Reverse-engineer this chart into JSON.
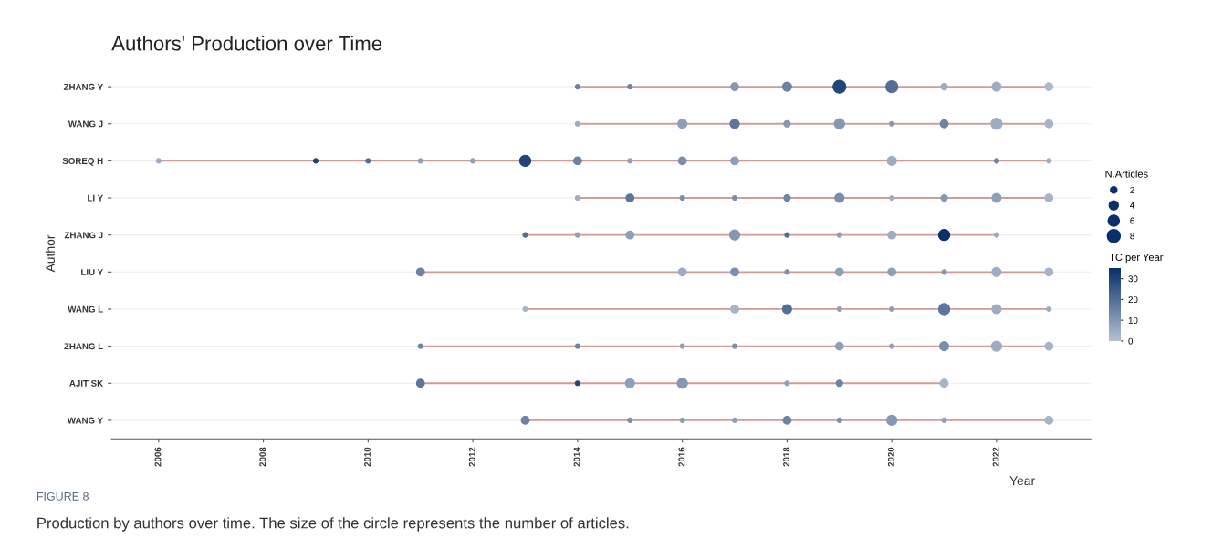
{
  "chart_data": {
    "type": "bubble",
    "orientation": "horizontal",
    "title": "Authors' Production over Time",
    "xlabel": "Year",
    "ylabel": "Author",
    "categories": [
      "ZHANG Y",
      "WANG J",
      "SOREQ H",
      "LI Y",
      "ZHANG J",
      "LIU Y",
      "WANG L",
      "ZHANG L",
      "AJIT SK",
      "WANG Y"
    ],
    "xlim": [
      2005.1,
      2023.8
    ],
    "xticks": [
      2006,
      2008,
      2010,
      2012,
      2014,
      2016,
      2018,
      2020,
      2022
    ],
    "grid": "y",
    "legend_title": "N.Articles",
    "size_legend": [
      2,
      4,
      6,
      8
    ],
    "clabel": "TC per Year",
    "cticks": [
      0,
      10,
      20,
      30
    ],
    "clim": [
      0,
      35
    ],
    "series": [
      {
        "type": "bar",
        "color": "#d39a9a",
        "base": [
          2014,
          2014,
          2006,
          2014,
          2013,
          2011,
          2013,
          2011,
          2011,
          2013
        ],
        "values": [
          9,
          9,
          17,
          9,
          9,
          12,
          10,
          12,
          10,
          10
        ]
      },
      {
        "values": [
          null,
          null,
          2006,
          null,
          null,
          null,
          null,
          null,
          null,
          null
        ],
        "sizes": [
          null,
          null,
          1,
          null,
          null,
          null,
          null,
          null,
          null,
          null
        ],
        "colors": [
          null,
          null,
          "#9cacc4",
          null,
          null,
          null,
          null,
          null,
          null,
          null
        ]
      },
      {
        "values": [
          null,
          null,
          2009,
          null,
          null,
          null,
          null,
          null,
          null,
          null
        ],
        "sizes": [
          null,
          null,
          1,
          null,
          null,
          null,
          null,
          null,
          null,
          null
        ],
        "colors": [
          null,
          null,
          "#21457a",
          null,
          null,
          null,
          null,
          null,
          null,
          null
        ]
      },
      {
        "values": [
          null,
          null,
          2010,
          null,
          null,
          null,
          null,
          null,
          null,
          null
        ],
        "sizes": [
          null,
          null,
          1,
          null,
          null,
          null,
          null,
          null,
          null,
          null
        ],
        "colors": [
          null,
          null,
          "#526e97",
          null,
          null,
          null,
          null,
          null,
          null,
          null
        ]
      },
      {
        "values": [
          null,
          null,
          2011,
          null,
          null,
          2011,
          null,
          2011,
          2011,
          null
        ],
        "sizes": [
          null,
          null,
          1,
          null,
          null,
          3,
          null,
          1,
          3,
          null
        ],
        "colors": [
          null,
          null,
          "#8da0bb",
          null,
          null,
          "#6b83a6",
          null,
          "#6b83a6",
          "#5c769d",
          null
        ]
      },
      {
        "values": [
          null,
          null,
          2012,
          null,
          null,
          null,
          null,
          null,
          null,
          null
        ],
        "sizes": [
          null,
          null,
          1,
          null,
          null,
          null,
          null,
          null,
          null,
          null
        ],
        "colors": [
          null,
          null,
          "#8da0bb",
          null,
          null,
          null,
          null,
          null,
          null,
          null
        ]
      },
      {
        "values": [
          null,
          null,
          2013,
          null,
          2013,
          null,
          2013,
          null,
          null,
          2013
        ],
        "sizes": [
          null,
          null,
          6,
          null,
          1,
          null,
          1,
          null,
          null,
          3
        ],
        "colors": [
          null,
          null,
          "#21457a",
          null,
          "#526e97",
          null,
          "#a6b4ca",
          null,
          null,
          "#6b83a6"
        ]
      },
      {
        "values": [
          2014,
          2014,
          2014,
          2014,
          2014,
          null,
          null,
          2014,
          2014,
          null
        ],
        "sizes": [
          1,
          1,
          3,
          1,
          1,
          null,
          null,
          1,
          1,
          null
        ],
        "colors": [
          "#6b83a6",
          "#9cacc4",
          "#6b83a6",
          "#9cacc4",
          "#8da0bb",
          null,
          null,
          "#6b83a6",
          "#21457a",
          null
        ]
      },
      {
        "values": [
          2015,
          null,
          2015,
          2015,
          2015,
          null,
          null,
          null,
          2015,
          2015
        ],
        "sizes": [
          1,
          null,
          1,
          3,
          3,
          null,
          null,
          null,
          4,
          1
        ],
        "colors": [
          "#6b83a6",
          null,
          "#8da0bb",
          "#5c769d",
          "#8da0bb",
          null,
          null,
          null,
          "#8da0bb",
          "#7a8faf"
        ]
      },
      {
        "values": [
          null,
          2016,
          2016,
          2016,
          null,
          2016,
          null,
          2016,
          2016,
          2016
        ],
        "sizes": [
          null,
          4,
          3,
          1,
          null,
          3,
          null,
          1,
          5,
          1
        ],
        "colors": [
          null,
          "#8da0bb",
          "#7a8faf",
          "#7a8faf",
          null,
          "#9cacc4",
          null,
          "#8da0bb",
          "#8398b5",
          "#8da0bb"
        ]
      },
      {
        "values": [
          2017,
          2017,
          2017,
          2017,
          2017,
          2017,
          2017,
          2017,
          null,
          2017
        ],
        "sizes": [
          3,
          4,
          3,
          1,
          5,
          3,
          3,
          1,
          null,
          1
        ],
        "colors": [
          "#8398b5",
          "#5c769d",
          "#8da0bb",
          "#7a8faf",
          "#8398b5",
          "#7a8faf",
          "#a6b4ca",
          "#7a8faf",
          null,
          "#8da0bb"
        ]
      },
      {
        "values": [
          2018,
          2018,
          null,
          2018,
          2018,
          2018,
          2018,
          null,
          2018,
          2018
        ],
        "sizes": [
          4,
          2,
          null,
          2,
          1,
          1,
          4,
          null,
          1,
          3
        ],
        "colors": [
          "#6b83a6",
          "#8398b5",
          null,
          "#6b83a6",
          "#526e97",
          "#7a8faf",
          "#526e97",
          null,
          "#8da0bb",
          "#6b83a6"
        ]
      },
      {
        "values": [
          2019,
          2019,
          null,
          2019,
          2019,
          2019,
          2019,
          2019,
          2019,
          2019
        ],
        "sizes": [
          8,
          5,
          null,
          4,
          1,
          3,
          1,
          3,
          2,
          1
        ],
        "colors": [
          "#21457a",
          "#8398b5",
          null,
          "#7a8faf",
          "#8da0bb",
          "#8da0bb",
          "#8da0bb",
          "#8da0bb",
          "#6b83a6",
          "#7a8faf"
        ]
      },
      {
        "values": [
          2020,
          2020,
          2020,
          2020,
          2020,
          2020,
          2020,
          2020,
          null,
          2020
        ],
        "sizes": [
          7,
          1,
          4,
          1,
          3,
          3,
          1,
          1,
          null,
          5
        ],
        "colors": [
          "#526e97",
          "#8398b5",
          "#9cacc4",
          "#9cacc4",
          "#9cacc4",
          "#8da0bb",
          "#8da0bb",
          "#8da0bb",
          null,
          "#8398b5"
        ]
      },
      {
        "values": [
          2021,
          2021,
          null,
          2021,
          2021,
          2021,
          2021,
          2021,
          2021,
          2021
        ],
        "sizes": [
          2,
          3,
          null,
          2,
          6,
          1,
          6,
          4,
          3,
          1
        ],
        "colors": [
          "#9cacc4",
          "#6b83a6",
          null,
          "#8398b5",
          "#08306b",
          "#8398b5",
          "#5c769d",
          "#7a8faf",
          "#a6b4ca",
          "#8da0bb"
        ]
      },
      {
        "values": [
          2022,
          2022,
          2022,
          2022,
          2022,
          2022,
          2022,
          2022,
          null,
          null
        ],
        "sizes": [
          4,
          6,
          1,
          4,
          1,
          4,
          4,
          5,
          null,
          null
        ],
        "colors": [
          "#9cacc4",
          "#9cacc4",
          "#6b83a6",
          "#8da0bb",
          "#9cacc4",
          "#9cacc4",
          "#9cacc4",
          "#9cacc4",
          null,
          null
        ]
      },
      {
        "values": [
          2023,
          2023,
          2023,
          2023,
          null,
          2023,
          2023,
          2023,
          null,
          2023
        ],
        "sizes": [
          3,
          3,
          1,
          3,
          null,
          3,
          1,
          3,
          null,
          3
        ],
        "colors": [
          "#abb9cd",
          "#a6b4ca",
          "#9cacc4",
          "#a6b4ca",
          null,
          "#a6b4ca",
          "#9cacc4",
          "#a6b4ca",
          null,
          "#a6b4ca"
        ]
      }
    ],
    "annotations": [
      "FIGURE 8",
      "Production by authors over time. The size of the circle represents the number of articles."
    ]
  }
}
